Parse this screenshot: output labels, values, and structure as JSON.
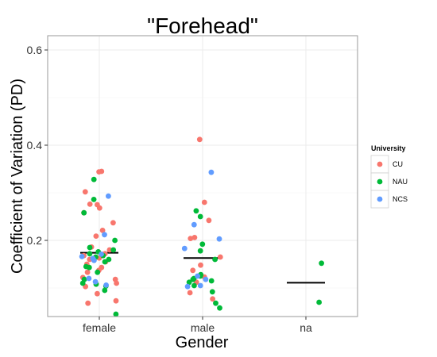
{
  "chart_data": {
    "type": "scatter",
    "title": "\"Forehead\"",
    "xlabel": "Gender",
    "ylabel": "Coefficient of Variation (PD)",
    "categories": [
      "female",
      "male",
      "na"
    ],
    "ylim": [
      0.04,
      0.63
    ],
    "yticks": [
      "0.2",
      "0.4",
      "0.6"
    ],
    "grid": true,
    "legend": {
      "title": "University",
      "position": "right"
    },
    "series": [
      {
        "name": "CU",
        "color": "#F8766D",
        "points": [
          [
            "female",
            0.344
          ],
          [
            "female",
            0.345
          ],
          [
            "female",
            0.302
          ],
          [
            "female",
            0.276
          ],
          [
            "female",
            0.275
          ],
          [
            "female",
            0.268
          ],
          [
            "female",
            0.258
          ],
          [
            "female",
            0.237
          ],
          [
            "female",
            0.221
          ],
          [
            "female",
            0.209
          ],
          [
            "female",
            0.186
          ],
          [
            "female",
            0.18
          ],
          [
            "female",
            0.172
          ],
          [
            "female",
            0.168
          ],
          [
            "female",
            0.163
          ],
          [
            "female",
            0.16
          ],
          [
            "female",
            0.155
          ],
          [
            "female",
            0.15
          ],
          [
            "female",
            0.143
          ],
          [
            "female",
            0.137
          ],
          [
            "female",
            0.133
          ],
          [
            "female",
            0.122
          ],
          [
            "female",
            0.118
          ],
          [
            "female",
            0.11
          ],
          [
            "female",
            0.103
          ],
          [
            "female",
            0.088
          ],
          [
            "female",
            0.073
          ],
          [
            "female",
            0.068
          ],
          [
            "male",
            0.412
          ],
          [
            "male",
            0.28
          ],
          [
            "male",
            0.242
          ],
          [
            "male",
            0.206
          ],
          [
            "male",
            0.204
          ],
          [
            "male",
            0.165
          ],
          [
            "male",
            0.148
          ],
          [
            "male",
            0.137
          ],
          [
            "male",
            0.123
          ],
          [
            "male",
            0.112
          ],
          [
            "male",
            0.09
          ],
          [
            "male",
            0.077
          ]
        ]
      },
      {
        "name": "NAU",
        "color": "#00BA38",
        "points": [
          [
            "female",
            0.328
          ],
          [
            "female",
            0.286
          ],
          [
            "female",
            0.258
          ],
          [
            "female",
            0.2
          ],
          [
            "female",
            0.185
          ],
          [
            "female",
            0.18
          ],
          [
            "female",
            0.176
          ],
          [
            "female",
            0.172
          ],
          [
            "female",
            0.168
          ],
          [
            "female",
            0.165
          ],
          [
            "female",
            0.16
          ],
          [
            "female",
            0.155
          ],
          [
            "female",
            0.145
          ],
          [
            "female",
            0.143
          ],
          [
            "female",
            0.133
          ],
          [
            "female",
            0.118
          ],
          [
            "female",
            0.11
          ],
          [
            "female",
            0.108
          ],
          [
            "female",
            0.104
          ],
          [
            "female",
            0.095
          ],
          [
            "female",
            0.045
          ],
          [
            "male",
            0.262
          ],
          [
            "male",
            0.25
          ],
          [
            "male",
            0.192
          ],
          [
            "male",
            0.178
          ],
          [
            "male",
            0.16
          ],
          [
            "male",
            0.128
          ],
          [
            "male",
            0.125
          ],
          [
            "male",
            0.12
          ],
          [
            "male",
            0.118
          ],
          [
            "male",
            0.115
          ],
          [
            "male",
            0.112
          ],
          [
            "male",
            0.105
          ],
          [
            "male",
            0.092
          ],
          [
            "male",
            0.068
          ],
          [
            "male",
            0.058
          ],
          [
            "na",
            0.152
          ],
          [
            "na",
            0.07
          ]
        ]
      },
      {
        "name": "NCS",
        "color": "#619CFF",
        "points": [
          [
            "female",
            0.293
          ],
          [
            "female",
            0.212
          ],
          [
            "female",
            0.171
          ],
          [
            "female",
            0.166
          ],
          [
            "female",
            0.162
          ],
          [
            "female",
            0.158
          ],
          [
            "female",
            0.12
          ],
          [
            "female",
            0.113
          ],
          [
            "female",
            0.106
          ],
          [
            "male",
            0.343
          ],
          [
            "male",
            0.233
          ],
          [
            "male",
            0.203
          ],
          [
            "male",
            0.183
          ],
          [
            "male",
            0.125
          ],
          [
            "male",
            0.118
          ],
          [
            "male",
            0.105
          ],
          [
            "male",
            0.103
          ]
        ]
      }
    ],
    "means": [
      {
        "category": "female",
        "value": 0.174
      },
      {
        "category": "male",
        "value": 0.163
      },
      {
        "category": "na",
        "value": 0.111
      }
    ]
  }
}
